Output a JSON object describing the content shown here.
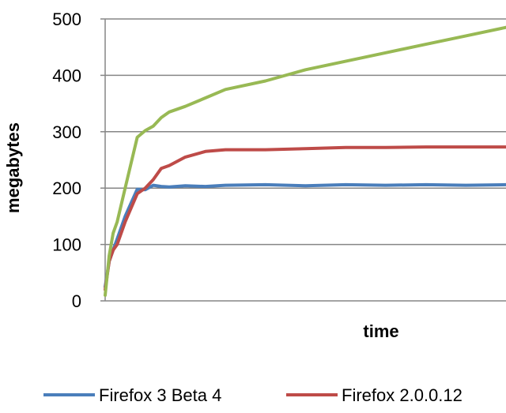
{
  "chart_data": {
    "type": "line",
    "title": "",
    "xlabel": "time",
    "ylabel": "megabytes",
    "ylim": [
      0,
      500
    ],
    "yticks": [
      0,
      100,
      200,
      300,
      400,
      500
    ],
    "grid": true,
    "legend_position": "bottom",
    "series": [
      {
        "name": "Firefox 3 Beta 4",
        "color": "#4a7ebb",
        "x": [
          0,
          1,
          2,
          3,
          5,
          8,
          10,
          12,
          14,
          16,
          20,
          25,
          30,
          40,
          50,
          60,
          70,
          80,
          90,
          100
        ],
        "values": [
          25,
          70,
          90,
          110,
          150,
          198,
          197,
          205,
          203,
          202,
          204,
          203,
          205,
          206,
          204,
          206,
          205,
          206,
          205,
          206
        ]
      },
      {
        "name": "Firefox 2.0.0.12",
        "color": "#be4b48",
        "x": [
          0,
          1,
          2,
          3,
          5,
          8,
          10,
          12,
          14,
          16,
          20,
          25,
          30,
          40,
          50,
          60,
          70,
          80,
          90,
          100
        ],
        "values": [
          20,
          70,
          90,
          100,
          140,
          190,
          200,
          215,
          235,
          240,
          255,
          265,
          268,
          268,
          270,
          272,
          272,
          273,
          273,
          273
        ]
      },
      {
        "name": "",
        "color": "#98b954",
        "x": [
          0,
          1,
          2,
          3,
          5,
          8,
          10,
          12,
          14,
          16,
          20,
          25,
          30,
          40,
          50,
          60,
          70,
          80,
          90,
          100
        ],
        "values": [
          10,
          80,
          120,
          140,
          200,
          290,
          302,
          310,
          325,
          335,
          345,
          360,
          375,
          390,
          410,
          425,
          440,
          455,
          470,
          485
        ]
      }
    ]
  },
  "legend": [
    {
      "label": "Firefox 3 Beta 4",
      "color": "#4a7ebb"
    },
    {
      "label": "Firefox 2.0.0.12",
      "color": "#be4b48"
    }
  ]
}
